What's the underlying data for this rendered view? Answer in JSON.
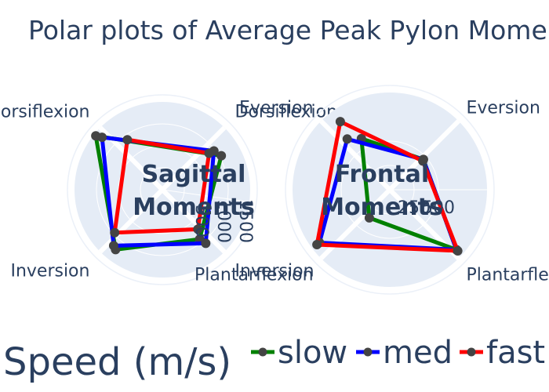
{
  "title": "Polar plots of Average Peak Pylon Moments",
  "legend": {
    "title": "Speed (m/s)",
    "position": "bottom-right"
  },
  "colors": {
    "slow": "#008000",
    "med": "#0000ff",
    "fast": "#ff0000",
    "marker": "#444444",
    "polar_bg": "#e5ecf6",
    "grid": "#ffffff",
    "text": "#2a3f5f"
  },
  "chart_data": [
    {
      "type": "radar",
      "center_label": [
        "Sagittal",
        "Moments"
      ],
      "categories": [
        "Dorsiflexion",
        "Inversion",
        "Plantarflexion",
        "Eversion"
      ],
      "category_labels": [
        {
          "text": "Dorsiflexion",
          "angle": 45
        },
        {
          "text": "Dorsiflexion",
          "angle": 135
        },
        {
          "text": "Inversion",
          "angle": 225
        },
        {
          "text": "Inversion",
          "angle": 315
        }
      ],
      "radial_range": [
        0,
        2000
      ],
      "radial_ticks": [
        {
          "value": 500,
          "label": "500"
        },
        {
          "value": 1000,
          "label": "1000"
        },
        {
          "value": 1500,
          "label": "1500"
        }
      ],
      "series": [
        {
          "name": "slow",
          "points": [
            {
              "theta": 30,
              "r": 1550
            },
            {
              "theta": 141,
              "r": 1950
            },
            {
              "theta": 232,
              "r": 1730
            },
            {
              "theta": 307,
              "r": 1410
            }
          ]
        },
        {
          "name": "med",
          "points": [
            {
              "theta": 37,
              "r": 1470
            },
            {
              "theta": 139,
              "r": 1820
            },
            {
              "theta": 229,
              "r": 1690
            },
            {
              "theta": 309,
              "r": 1570
            }
          ]
        },
        {
          "name": "fast",
          "points": [
            {
              "theta": 38,
              "r": 1350
            },
            {
              "theta": 125,
              "r": 1390
            },
            {
              "theta": 222,
              "r": 1460
            },
            {
              "theta": 312,
              "r": 1210
            }
          ]
        }
      ]
    },
    {
      "type": "radar",
      "center_label": [
        "Frontal",
        "Moments"
      ],
      "categories": [
        "Eversion",
        "Inversion",
        "Plantarflexion",
        "Dorsiflexion"
      ],
      "category_labels": [
        {
          "text": "Eversion",
          "angle": 45
        },
        {
          "text": "Eversion",
          "angle": 135
        },
        {
          "text": "Plantarflexion",
          "angle": 225
        },
        {
          "text": "Plantarflexion",
          "angle": 315
        }
      ],
      "radial_range": [
        0,
        1000
      ],
      "radial_ticks": [
        {
          "value": 250,
          "label": "250"
        },
        {
          "value": 500,
          "label": "500"
        }
      ],
      "series": [
        {
          "name": "slow",
          "points": [
            {
              "theta": 42,
              "r": 465
            },
            {
              "theta": 119,
              "r": 602
            },
            {
              "theta": 234,
              "r": 358
            },
            {
              "theta": 318,
              "r": 922
            }
          ]
        },
        {
          "name": "med",
          "points": [
            {
              "theta": 42,
              "r": 465
            },
            {
              "theta": 130,
              "r": 681
            },
            {
              "theta": 217,
              "r": 905
            },
            {
              "theta": 318,
              "r": 922
            }
          ]
        },
        {
          "name": "fast",
          "points": [
            {
              "theta": 41,
              "r": 450
            },
            {
              "theta": 126,
              "r": 866
            },
            {
              "theta": 217,
              "r": 938
            },
            {
              "theta": 318,
              "r": 940
            }
          ]
        }
      ]
    }
  ]
}
